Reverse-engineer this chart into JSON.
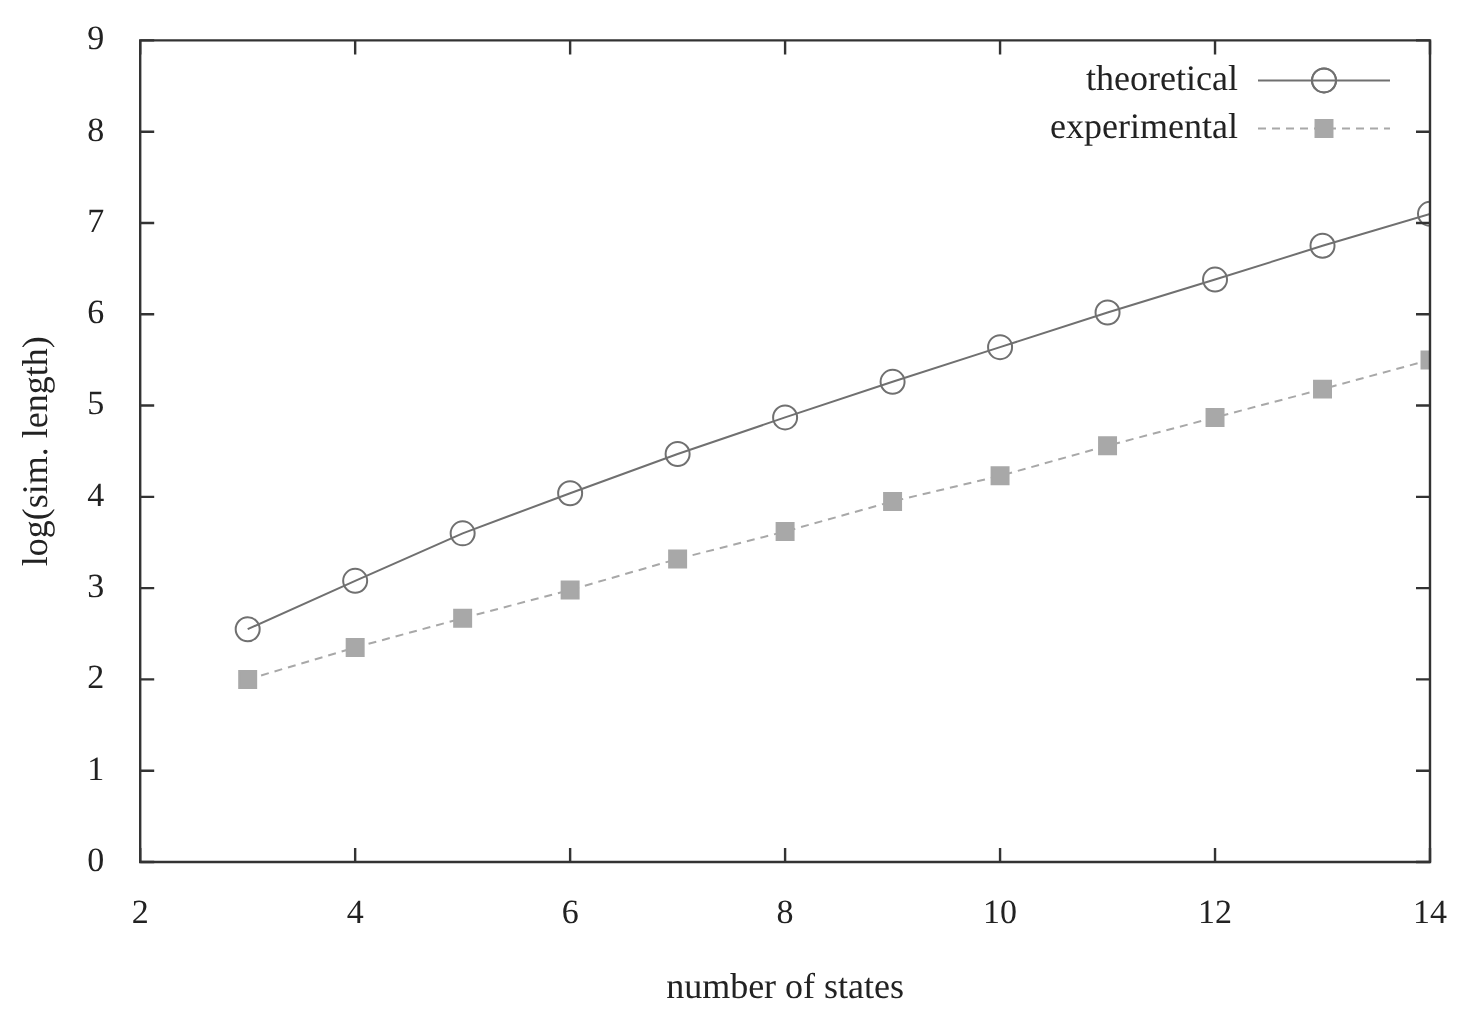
{
  "chart_data": {
    "type": "line",
    "xlabel": "number of states",
    "ylabel": "log(sim. length)",
    "x": [
      3,
      4,
      5,
      6,
      7,
      8,
      9,
      10,
      11,
      12,
      13,
      14
    ],
    "series": [
      {
        "name": "theoretical",
        "color": "#707070",
        "marker": "circle",
        "line_style": "solid",
        "values": [
          2.55,
          3.08,
          3.6,
          4.04,
          4.47,
          4.87,
          5.26,
          5.64,
          6.02,
          6.38,
          6.75,
          7.1
        ]
      },
      {
        "name": "experimental",
        "color": "#a8a8a8",
        "marker": "square",
        "line_style": "dashed",
        "values": [
          2.0,
          2.35,
          2.67,
          2.98,
          3.32,
          3.62,
          3.95,
          4.23,
          4.56,
          4.87,
          5.18,
          5.5
        ]
      }
    ],
    "xlim": [
      2,
      14
    ],
    "xticks": [
      2,
      4,
      6,
      8,
      10,
      12,
      14
    ],
    "ylim": [
      0,
      9
    ],
    "yticks": [
      0,
      1,
      2,
      3,
      4,
      5,
      6,
      7,
      8,
      9
    ],
    "grid": false,
    "legend": "top right"
  }
}
